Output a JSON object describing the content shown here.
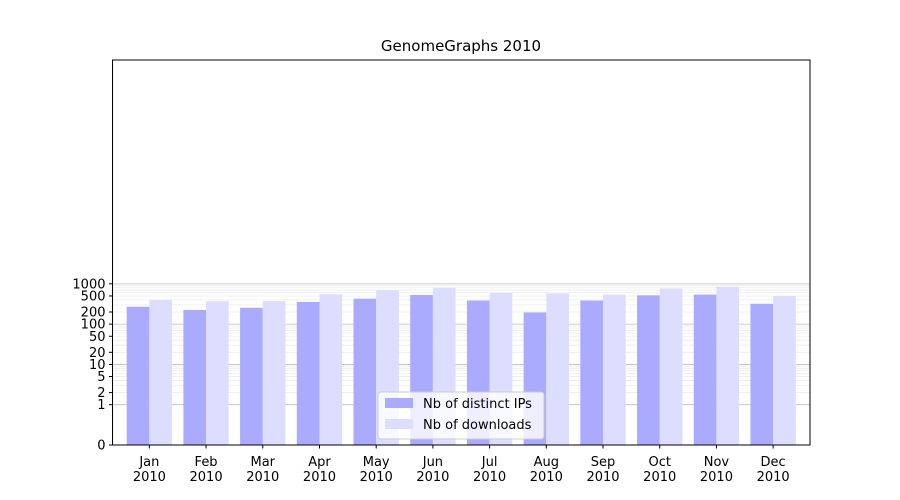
{
  "chart_data": {
    "type": "bar",
    "title": "GenomeGraphs 2010",
    "xlabel": "",
    "ylabel": "",
    "yscale": "symlog",
    "ylim": [
      0,
      1200
    ],
    "yticks": [
      0,
      1,
      2,
      5,
      10,
      20,
      50,
      100,
      200,
      500,
      1000
    ],
    "ytick_labels": [
      "0",
      "1",
      "2",
      "5",
      "10",
      "20",
      "50",
      "100",
      "200",
      "500",
      "1000"
    ],
    "categories": [
      "Jan\n2010",
      "Feb\n2010",
      "Mar\n2010",
      "Apr\n2010",
      "May\n2010",
      "Jun\n2010",
      "Jul\n2010",
      "Aug\n2010",
      "Sep\n2010",
      "Oct\n2010",
      "Nov\n2010",
      "Dec\n2010"
    ],
    "category_lines": [
      [
        "Jan",
        "2010"
      ],
      [
        "Feb",
        "2010"
      ],
      [
        "Mar",
        "2010"
      ],
      [
        "Apr",
        "2010"
      ],
      [
        "May",
        "2010"
      ],
      [
        "Jun",
        "2010"
      ],
      [
        "Jul",
        "2010"
      ],
      [
        "Aug",
        "2010"
      ],
      [
        "Sep",
        "2010"
      ],
      [
        "Oct",
        "2010"
      ],
      [
        "Nov",
        "2010"
      ],
      [
        "Dec",
        "2010"
      ]
    ],
    "series": [
      {
        "name": "Nb of distinct IPs",
        "color": "#aaaaff",
        "values": [
          270,
          225,
          255,
          355,
          430,
          530,
          385,
          195,
          385,
          520,
          540,
          320
        ]
      },
      {
        "name": "Nb of downloads",
        "color": "#ddddff",
        "values": [
          395,
          370,
          375,
          550,
          690,
          800,
          600,
          580,
          540,
          765,
          850,
          500
        ]
      }
    ],
    "grid": true,
    "legend_position": "lower-center"
  }
}
